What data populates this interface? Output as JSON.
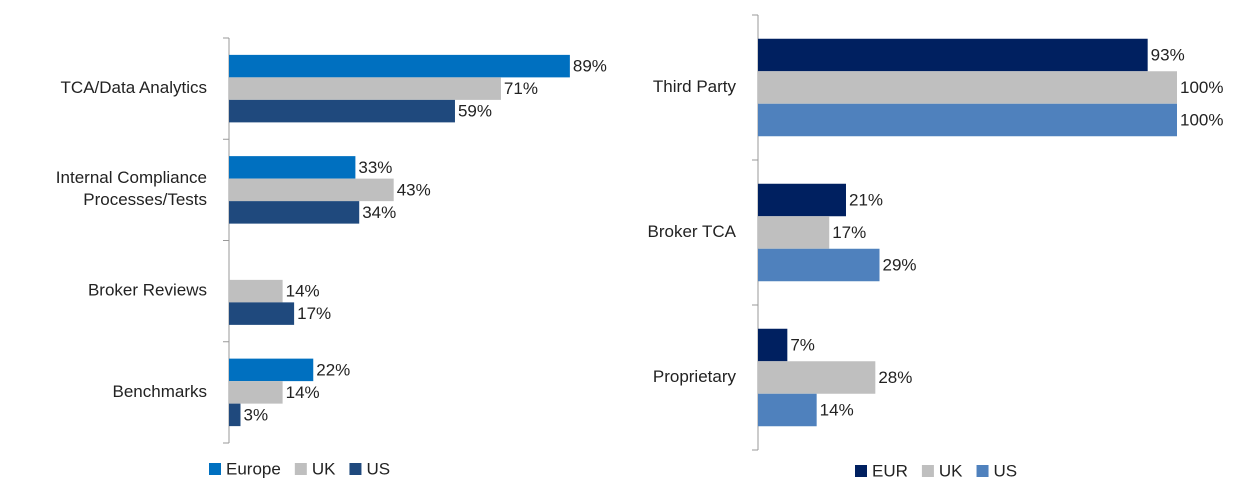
{
  "chart_data": [
    {
      "type": "barh",
      "categories": [
        "TCA/Data Analytics",
        "Internal Compliance\nProcesses/Tests",
        "Broker Reviews",
        "Benchmarks"
      ],
      "series": [
        {
          "name": "Europe",
          "color": "#0070c0",
          "values": [
            89,
            33,
            null,
            22
          ],
          "value_labels": [
            "89%",
            "33%",
            null,
            "22%"
          ]
        },
        {
          "name": "UK",
          "color": "#bfbfbf",
          "values": [
            71,
            43,
            14,
            14
          ],
          "value_labels": [
            "71%",
            "43%",
            "14%",
            "14%"
          ]
        },
        {
          "name": "US",
          "color": "#1f497d",
          "values": [
            59,
            34,
            17,
            3
          ],
          "value_labels": [
            "59%",
            "34%",
            "17%",
            "3%"
          ]
        }
      ],
      "xlim": [
        0,
        100
      ]
    },
    {
      "type": "barh",
      "categories": [
        "Third Party",
        "Broker TCA",
        "Proprietary"
      ],
      "series": [
        {
          "name": "EUR",
          "color": "#002060",
          "values": [
            93,
            21,
            7
          ],
          "value_labels": [
            "93%",
            "21%",
            "7%"
          ]
        },
        {
          "name": "UK",
          "color": "#bfbfbf",
          "values": [
            100,
            17,
            28
          ],
          "value_labels": [
            "100%",
            "17%",
            "28%"
          ]
        },
        {
          "name": "US",
          "color": "#4f81bd",
          "values": [
            100,
            29,
            14
          ],
          "value_labels": [
            "100%",
            "29%",
            "14%"
          ]
        }
      ],
      "xlim": [
        0,
        100
      ]
    }
  ]
}
